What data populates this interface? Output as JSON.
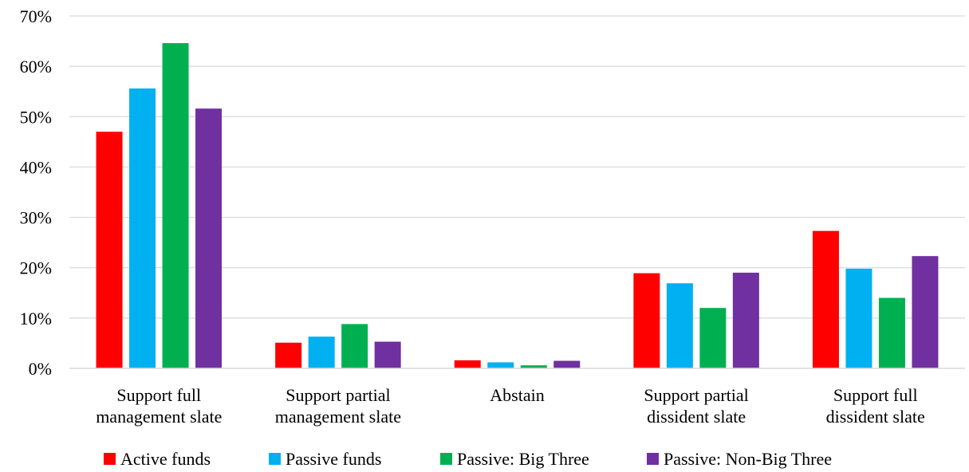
{
  "chart_data": {
    "type": "bar",
    "categories": [
      [
        "Support full",
        "management slate"
      ],
      [
        "Support partial",
        "management slate"
      ],
      [
        "Abstain"
      ],
      [
        "Support partial",
        "dissident slate"
      ],
      [
        "Support full",
        "dissident slate"
      ]
    ],
    "series": [
      {
        "name": "Active funds",
        "color": "#ff0000",
        "values": [
          47.0,
          5.1,
          1.6,
          18.9,
          27.3
        ]
      },
      {
        "name": "Passive funds",
        "color": "#00b0f0",
        "values": [
          55.6,
          6.3,
          1.2,
          16.9,
          19.8
        ]
      },
      {
        "name": "Passive: Big Three",
        "color": "#00b050",
        "values": [
          64.6,
          8.8,
          0.6,
          12.0,
          14.0
        ]
      },
      {
        "name": "Passive: Non-Big Three",
        "color": "#7030a0",
        "values": [
          51.6,
          5.3,
          1.5,
          19.0,
          22.3
        ]
      }
    ],
    "y_ticks": [
      "0%",
      "10%",
      "20%",
      "30%",
      "40%",
      "50%",
      "60%",
      "70%"
    ],
    "ylim": [
      0,
      70
    ],
    "grid": true,
    "legend_position": "bottom"
  }
}
